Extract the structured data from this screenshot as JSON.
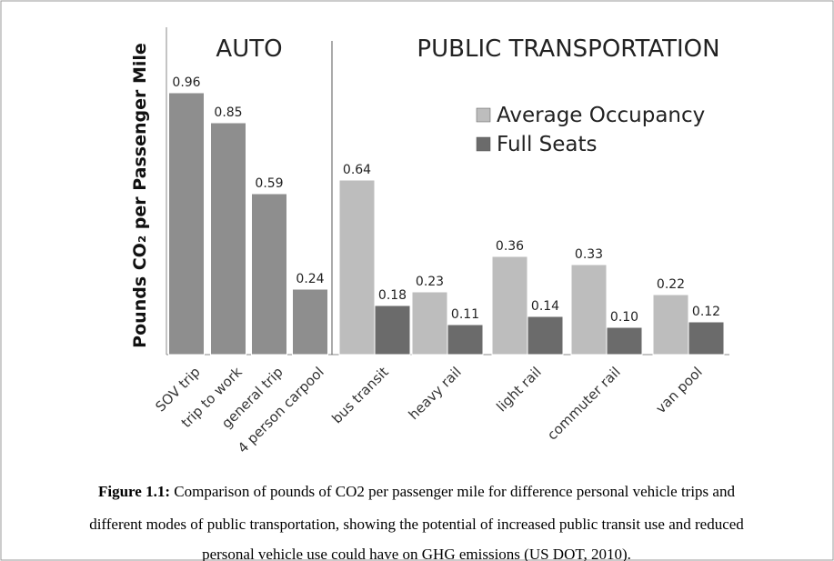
{
  "chart_data": {
    "type": "bar",
    "ylabel": "Pounds CO₂ per Passenger Mile",
    "section_labels": [
      "AUTO",
      "PUBLIC TRANSPORTATION"
    ],
    "categories": [
      "SOV trip",
      "trip to work",
      "general trip",
      "4 person carpool",
      "bus transit",
      "heavy rail",
      "light rail",
      "commuter rail",
      "van pool"
    ],
    "series": [
      {
        "color": "#8e8e8e",
        "values": [
          0.96,
          0.85,
          0.59,
          0.24,
          null,
          null,
          null,
          null,
          null
        ],
        "value_labels": [
          "0.96",
          "0.85",
          "0.59",
          "0.24",
          null,
          null,
          null,
          null,
          null
        ]
      },
      {
        "name": "Average Occupancy",
        "color": "#bdbdbd",
        "values": [
          null,
          null,
          null,
          null,
          0.64,
          0.23,
          0.36,
          0.33,
          0.22
        ],
        "value_labels": [
          null,
          null,
          null,
          null,
          "0.64",
          "0.23",
          "0.36",
          "0.33",
          "0.22"
        ]
      },
      {
        "name": "Full Seats",
        "color": "#6b6b6b",
        "values": [
          null,
          null,
          null,
          null,
          0.18,
          0.11,
          0.14,
          0.1,
          0.12
        ],
        "value_labels": [
          null,
          null,
          null,
          null,
          "0.18",
          "0.11",
          "0.14",
          "0.10",
          "0.12"
        ]
      }
    ],
    "ylim": [
      0,
      1.2
    ],
    "legend": "upper right"
  },
  "caption": {
    "label": "Figure 1.1:",
    "lines": [
      "Comparison of pounds of CO2 per passenger mile for difference personal vehicle trips and",
      "different modes of public transportation, showing the potential of increased public transit use and reduced",
      "personal vehicle use could have on GHG emissions (US DOT, 2010)."
    ]
  }
}
